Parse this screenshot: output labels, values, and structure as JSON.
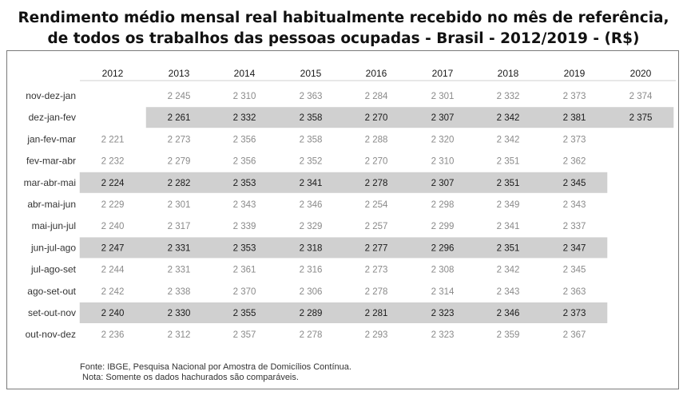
{
  "title_line1": "Rendimento médio mensal real habitualmente recebido no mês de referência,",
  "title_line2": "de todos os trabalhos das pessoas ocupadas - Brasil - 2012/2019 - (R$)",
  "footnote_source": "Fonte: IBGE, Pesquisa Nacional por Amostra de Domicílios Contínua.",
  "footnote_note": " Nota: Somente os dados hachurados são comparáveis.",
  "colors": {
    "highlight": "#d0d0d0",
    "text_dark": "#1a1a1a",
    "text_light": "#8a8a8a",
    "label": "#333333"
  },
  "chart_data": {
    "type": "table",
    "title": "Rendimento médio mensal real habitualmente recebido no mês de referência, de todos os trabalhos das pessoas ocupadas - Brasil - 2012/2019 - (R$)",
    "columns": [
      "2012",
      "2013",
      "2014",
      "2015",
      "2016",
      "2017",
      "2018",
      "2019",
      "2020"
    ],
    "rows": [
      {
        "label": "nov-dez-jan",
        "highlight": false,
        "values": [
          "",
          "2 245",
          "2 310",
          "2 363",
          "2 284",
          "2 301",
          "2 332",
          "2 373",
          "2 374"
        ]
      },
      {
        "label": "dez-jan-fev",
        "highlight": true,
        "highlight_from": 1,
        "highlight_to": 8,
        "values": [
          "",
          "2 261",
          "2 332",
          "2 358",
          "2 270",
          "2 307",
          "2 342",
          "2 381",
          "2 375"
        ]
      },
      {
        "label": "jan-fev-mar",
        "highlight": false,
        "values": [
          "2 221",
          "2 273",
          "2 356",
          "2 358",
          "2 288",
          "2 320",
          "2 342",
          "2 373",
          ""
        ]
      },
      {
        "label": "fev-mar-abr",
        "highlight": false,
        "values": [
          "2 232",
          "2 279",
          "2 356",
          "2 352",
          "2 270",
          "2 310",
          "2 351",
          "2 362",
          ""
        ]
      },
      {
        "label": "mar-abr-mai",
        "highlight": true,
        "highlight_from": 0,
        "highlight_to": 7,
        "values": [
          "2 224",
          "2 282",
          "2 353",
          "2 341",
          "2 278",
          "2 307",
          "2 351",
          "2 345",
          ""
        ]
      },
      {
        "label": "abr-mai-jun",
        "highlight": false,
        "values": [
          "2 229",
          "2 301",
          "2 343",
          "2 346",
          "2 254",
          "2 298",
          "2 349",
          "2 343",
          ""
        ]
      },
      {
        "label": "mai-jun-jul",
        "highlight": false,
        "values": [
          "2 240",
          "2 317",
          "2 339",
          "2 329",
          "2 257",
          "2 299",
          "2 341",
          "2 337",
          ""
        ]
      },
      {
        "label": "jun-jul-ago",
        "highlight": true,
        "highlight_from": 0,
        "highlight_to": 7,
        "values": [
          "2 247",
          "2 331",
          "2 353",
          "2 318",
          "2 277",
          "2 296",
          "2 351",
          "2 347",
          ""
        ]
      },
      {
        "label": "jul-ago-set",
        "highlight": false,
        "values": [
          "2 244",
          "2 331",
          "2 361",
          "2 316",
          "2 273",
          "2 308",
          "2 342",
          "2 345",
          ""
        ]
      },
      {
        "label": "ago-set-out",
        "highlight": false,
        "values": [
          "2 242",
          "2 338",
          "2 370",
          "2 306",
          "2 278",
          "2 314",
          "2 343",
          "2 363",
          ""
        ]
      },
      {
        "label": "set-out-nov",
        "highlight": true,
        "highlight_from": 0,
        "highlight_to": 7,
        "values": [
          "2 240",
          "2 330",
          "2 355",
          "2 289",
          "2 281",
          "2 323",
          "2 346",
          "2 373",
          ""
        ]
      },
      {
        "label": "out-nov-dez",
        "highlight": false,
        "values": [
          "2 236",
          "2 312",
          "2 357",
          "2 278",
          "2 293",
          "2 323",
          "2 359",
          "2 367",
          ""
        ]
      }
    ]
  }
}
